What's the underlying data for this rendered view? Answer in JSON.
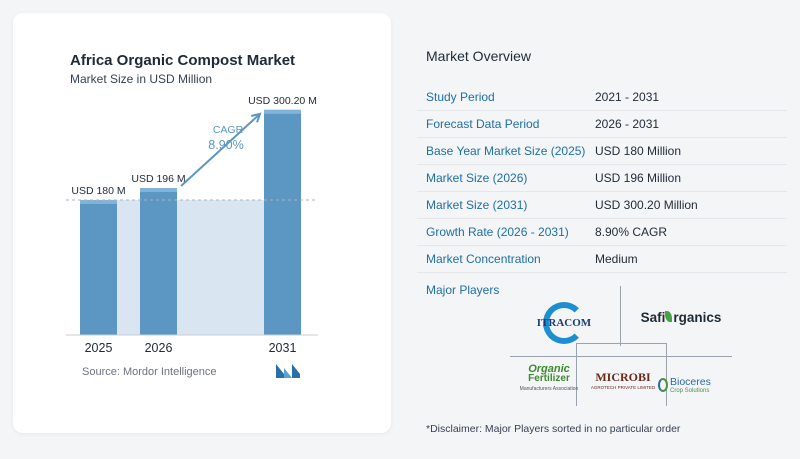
{
  "chart_card": {
    "title": "Africa Organic Compost Market",
    "subtitle": "Market Size in USD Million",
    "source": "Source: Mordor Intelligence"
  },
  "chart_data": {
    "type": "bar",
    "title": "Africa Organic Compost Market",
    "ylabel": "Market Size in USD Million",
    "categories": [
      "2025",
      "2026",
      "2031"
    ],
    "values": [
      180,
      196,
      300.2
    ],
    "data_labels": [
      "USD 180 M",
      "USD 196 M",
      "USD 300.20 M"
    ],
    "ylim": [
      0,
      320
    ],
    "reference_line": 180,
    "annotation": {
      "label": "CAGR",
      "value": "8.90%"
    },
    "colors": {
      "bar": "#5b97c2",
      "bar_top": "#7fb3d8",
      "band": "#d9e6f1",
      "arrow": "#5b97c2",
      "cagr_text": "#5b97c2"
    },
    "grid": false,
    "legend": "none"
  },
  "overview": {
    "title": "Market Overview",
    "rows": [
      {
        "label": "Study Period",
        "value": "2021 - 2031"
      },
      {
        "label": "Forecast Data Period",
        "value": "2026 - 2031"
      },
      {
        "label": "Base Year Market Size (2025)",
        "value": "USD 180 Million"
      },
      {
        "label": "Market Size (2026)",
        "value": "USD 196 Million"
      },
      {
        "label": "Market Size (2031)",
        "value": "USD 300.20 Million"
      },
      {
        "label": "Growth Rate (2026 - 2031)",
        "value": "8.90% CAGR"
      },
      {
        "label": "Market Concentration",
        "value": "Medium"
      }
    ]
  },
  "players": {
    "title": "Major Players",
    "itracom": "ITRACOM",
    "safi_prefix": "Safi",
    "safi_suffix": "rganics",
    "organic_line1": "Organic",
    "organic_line2": "Fertilizer",
    "organic_line3": "Manufacturers Association",
    "microbi_name": "MICROBI",
    "microbi_sub": "AGROTECH PRIVATE LIMITED",
    "bioceres_name": "Bioceres",
    "bioceres_sub": "Crop Solutions"
  },
  "disclaimer": "*Disclaimer: Major Players sorted in no particular order"
}
